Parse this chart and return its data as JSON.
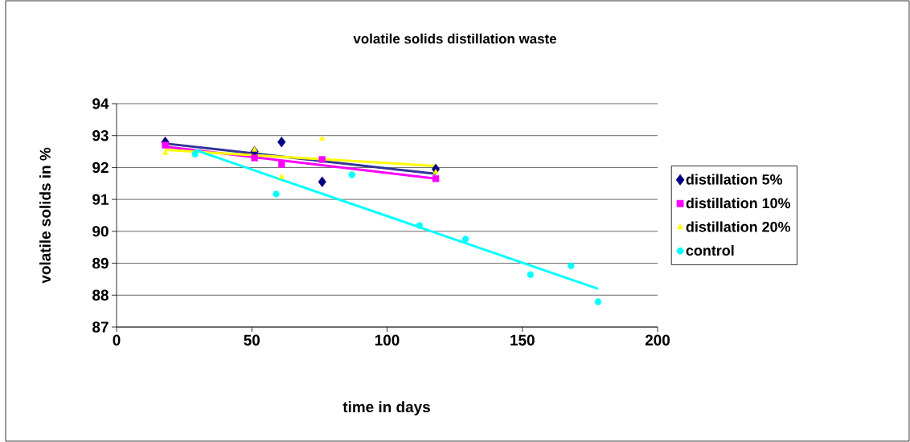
{
  "chart_data": {
    "type": "scatter",
    "title": "volatile solids distillation waste",
    "xlabel": "time in days",
    "ylabel": "volatile solids in %",
    "xlim": [
      0,
      200
    ],
    "xticks": [
      0,
      50,
      100,
      150,
      200
    ],
    "ylim": [
      87,
      94
    ],
    "yticks": [
      87,
      88,
      89,
      90,
      91,
      92,
      93,
      94
    ],
    "grid": "y",
    "legend": "right",
    "series": [
      {
        "name": "distillation 5%",
        "color": "#000080",
        "marker": "diamond",
        "x": [
          18,
          51,
          61,
          76,
          118
        ],
        "values": [
          92.8,
          92.5,
          92.8,
          91.55,
          91.95
        ]
      },
      {
        "name": "distillation 10%",
        "color": "#ff00ff",
        "marker": "square",
        "x": [
          18,
          51,
          61,
          76,
          118
        ],
        "values": [
          92.7,
          92.3,
          92.1,
          92.25,
          91.65
        ]
      },
      {
        "name": "distillation 20%",
        "color": "#ffff00",
        "marker": "triangle",
        "x": [
          18,
          51,
          61,
          76,
          118
        ],
        "values": [
          92.45,
          92.55,
          91.7,
          92.9,
          91.85
        ]
      },
      {
        "name": "control",
        "color": "#00ffff",
        "marker": "circle",
        "x": [
          29,
          59,
          87,
          112,
          129,
          153,
          168,
          178
        ],
        "values": [
          92.42,
          91.17,
          91.77,
          90.18,
          89.76,
          88.64,
          88.92,
          87.79
        ]
      },
      {
        "type": "line",
        "color": "#333399",
        "marker": "none",
        "x": [
          18,
          118
        ],
        "values": [
          92.75,
          91.8
        ]
      },
      {
        "type": "line",
        "color": "#ff00ff",
        "marker": "none",
        "x": [
          18,
          118
        ],
        "values": [
          92.65,
          91.65
        ]
      },
      {
        "type": "line",
        "color": "#ffff00",
        "marker": "none",
        "x": [
          18,
          118
        ],
        "values": [
          92.55,
          92.05
        ]
      },
      {
        "type": "line",
        "color": "#00ffff",
        "marker": "none",
        "x": [
          29,
          178
        ],
        "values": [
          92.55,
          88.2
        ]
      }
    ]
  }
}
